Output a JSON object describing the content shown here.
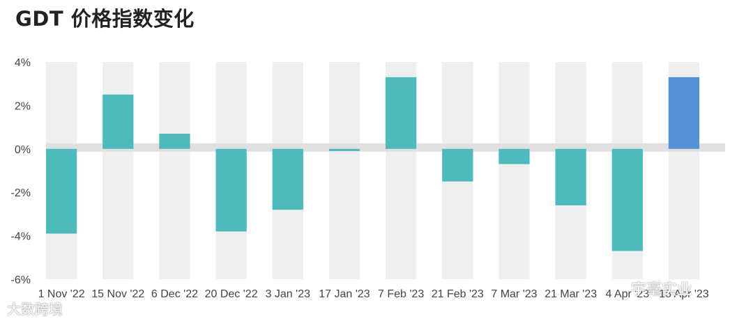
{
  "chart_data": {
    "type": "bar",
    "title": "GDT 价格指数变化",
    "categories": [
      "1 Nov '22",
      "15 Nov '22",
      "6 Dec '22",
      "20 Dec '22",
      "3 Jan '23",
      "17 Jan '23",
      "7 Feb '23",
      "21 Feb '23",
      "7 Mar '23",
      "21 Mar '23",
      "4 Apr '23",
      "18 Apr '23"
    ],
    "values": [
      -3.9,
      2.5,
      0.7,
      -3.8,
      -2.8,
      -0.1,
      3.3,
      -1.5,
      -0.7,
      -2.6,
      -4.7,
      3.3
    ],
    "ylim": [
      -6,
      4
    ],
    "yticks": [
      "4%",
      "2%",
      "0%",
      "-2%",
      "-4%",
      "-6%"
    ],
    "ytick_values": [
      4,
      2,
      0,
      -2,
      -4,
      -6
    ],
    "grid": false,
    "colors": {
      "bar": "#4dbbbb",
      "highlight": "#5591d5",
      "band": "#efefef",
      "zero_band": "#e0e0e0"
    },
    "highlight_index": 11
  },
  "watermarks": {
    "left": "大数跨境",
    "right": "宇毫实业"
  }
}
